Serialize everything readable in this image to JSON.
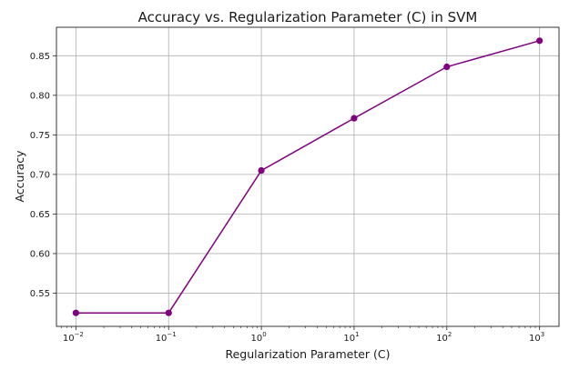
{
  "chart_data": {
    "type": "line",
    "title": "Accuracy vs. Regularization Parameter (C) in SVM",
    "xlabel": "Regularization Parameter (C)",
    "ylabel": "Accuracy",
    "x_scale": "log",
    "x_ticks": [
      {
        "base": "10",
        "exp": "−2",
        "value": 0.01
      },
      {
        "base": "10",
        "exp": "−1",
        "value": 0.1
      },
      {
        "base": "10",
        "exp": "0",
        "value": 1
      },
      {
        "base": "10",
        "exp": "1",
        "value": 10
      },
      {
        "base": "10",
        "exp": "2",
        "value": 100
      },
      {
        "base": "10",
        "exp": "3",
        "value": 1000
      }
    ],
    "y_ticks": [
      "0.55",
      "0.60",
      "0.65",
      "0.70",
      "0.75",
      "0.80",
      "0.85"
    ],
    "xlim": [
      0.00617,
      1620
    ],
    "ylim": [
      0.508,
      0.886
    ],
    "grid": true,
    "series": [
      {
        "color": "#800080",
        "marker": "circle",
        "x": [
          0.01,
          0.1,
          1,
          10,
          100,
          1000
        ],
        "y": [
          0.525,
          0.525,
          0.705,
          0.771,
          0.836,
          0.869
        ]
      }
    ]
  }
}
